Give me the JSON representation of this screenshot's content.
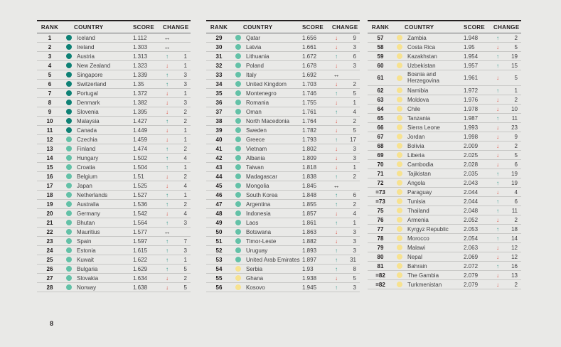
{
  "page": {
    "number": "8"
  },
  "colors": {
    "background": "#e9e9e7",
    "up_arrow": "#349a8f",
    "down_arrow": "#de4f43",
    "no_change": "#1a1a1a",
    "bands": {
      "very_high": "#0e8175",
      "high": "#63c1a7",
      "medium": "#f7e28f"
    }
  },
  "table_headers": {
    "rank": "RANK",
    "country": "COUNTRY",
    "score": "SCORE",
    "change": "CHANGE"
  },
  "tables": [
    {
      "rows": [
        {
          "rank": "1",
          "country": "Iceland",
          "score": "1.112",
          "dir": "same",
          "amt": "",
          "band": "very_high"
        },
        {
          "rank": "2",
          "country": "Ireland",
          "score": "1.303",
          "dir": "same",
          "amt": "",
          "band": "very_high"
        },
        {
          "rank": "3",
          "country": "Austria",
          "score": "1.313",
          "dir": "up",
          "amt": "1",
          "band": "very_high"
        },
        {
          "rank": "4",
          "country": "New Zealand",
          "score": "1.323",
          "dir": "down",
          "amt": "1",
          "band": "very_high"
        },
        {
          "rank": "5",
          "country": "Singapore",
          "score": "1.339",
          "dir": "up",
          "amt": "3",
          "band": "very_high"
        },
        {
          "rank": "6",
          "country": "Switzerland",
          "score": "1.35",
          "dir": "up",
          "amt": "3",
          "band": "very_high"
        },
        {
          "rank": "7",
          "country": "Portugal",
          "score": "1.372",
          "dir": "down",
          "amt": "1",
          "band": "very_high"
        },
        {
          "rank": "8",
          "country": "Denmark",
          "score": "1.382",
          "dir": "down",
          "amt": "3",
          "band": "very_high"
        },
        {
          "rank": "9",
          "country": "Slovenia",
          "score": "1.395",
          "dir": "down",
          "amt": "2",
          "band": "very_high"
        },
        {
          "rank": "10",
          "country": "Malaysia",
          "score": "1.427",
          "dir": "up",
          "amt": "2",
          "band": "very_high"
        },
        {
          "rank": "11",
          "country": "Canada",
          "score": "1.449",
          "dir": "down",
          "amt": "1",
          "band": "very_high"
        },
        {
          "rank": "12",
          "country": "Czechia",
          "score": "1.459",
          "dir": "down",
          "amt": "1",
          "band": "high"
        },
        {
          "rank": "13",
          "country": "Finland",
          "score": "1.474",
          "dir": "up",
          "amt": "2",
          "band": "high"
        },
        {
          "rank": "14",
          "country": "Hungary",
          "score": "1.502",
          "dir": "up",
          "amt": "4",
          "band": "high"
        },
        {
          "rank": "15",
          "country": "Croatia",
          "score": "1.504",
          "dir": "up",
          "amt": "1",
          "band": "high"
        },
        {
          "rank": "16",
          "country": "Belgium",
          "score": "1.51",
          "dir": "down",
          "amt": "2",
          "band": "high"
        },
        {
          "rank": "17",
          "country": "Japan",
          "score": "1.525",
          "dir": "down",
          "amt": "4",
          "band": "high"
        },
        {
          "rank": "18",
          "country": "Netherlands",
          "score": "1.527",
          "dir": "up",
          "amt": "1",
          "band": "high"
        },
        {
          "rank": "19",
          "country": "Australia",
          "score": "1.536",
          "dir": "up",
          "amt": "2",
          "band": "high"
        },
        {
          "rank": "20",
          "country": "Germany",
          "score": "1.542",
          "dir": "down",
          "amt": "4",
          "band": "high"
        },
        {
          "rank": "21",
          "country": "Bhutan",
          "score": "1.564",
          "dir": "up",
          "amt": "3",
          "band": "high"
        },
        {
          "rank": "22",
          "country": "Mauritius",
          "score": "1.577",
          "dir": "same",
          "amt": "",
          "band": "high"
        },
        {
          "rank": "23",
          "country": "Spain",
          "score": "1.597",
          "dir": "up",
          "amt": "7",
          "band": "high"
        },
        {
          "rank": "24",
          "country": "Estonia",
          "score": "1.615",
          "dir": "up",
          "amt": "3",
          "band": "high"
        },
        {
          "rank": "25",
          "country": "Kuwait",
          "score": "1.622",
          "dir": "up",
          "amt": "1",
          "band": "high"
        },
        {
          "rank": "26",
          "country": "Bulgaria",
          "score": "1.629",
          "dir": "up",
          "amt": "5",
          "band": "high"
        },
        {
          "rank": "27",
          "country": "Slovakia",
          "score": "1.634",
          "dir": "down",
          "amt": "2",
          "band": "high"
        },
        {
          "rank": "28",
          "country": "Norway",
          "score": "1.638",
          "dir": "down",
          "amt": "5",
          "band": "high"
        }
      ]
    },
    {
      "rows": [
        {
          "rank": "29",
          "country": "Qatar",
          "score": "1.656",
          "dir": "down",
          "amt": "9",
          "band": "high"
        },
        {
          "rank": "30",
          "country": "Latvia",
          "score": "1.661",
          "dir": "down",
          "amt": "3",
          "band": "high"
        },
        {
          "rank": "31",
          "country": "Lithuania",
          "score": "1.672",
          "dir": "up",
          "amt": "6",
          "band": "high"
        },
        {
          "rank": "32",
          "country": "Poland",
          "score": "1.678",
          "dir": "down",
          "amt": "3",
          "band": "high"
        },
        {
          "rank": "33",
          "country": "Italy",
          "score": "1.692",
          "dir": "same",
          "amt": "",
          "band": "high"
        },
        {
          "rank": "34",
          "country": "United Kingdom",
          "score": "1.703",
          "dir": "down",
          "amt": "2",
          "band": "high"
        },
        {
          "rank": "35",
          "country": "Montenegro",
          "score": "1.746",
          "dir": "up",
          "amt": "5",
          "band": "high"
        },
        {
          "rank": "36",
          "country": "Romania",
          "score": "1.755",
          "dir": "down",
          "amt": "1",
          "band": "high"
        },
        {
          "rank": "37",
          "country": "Oman",
          "score": "1.761",
          "dir": "up",
          "amt": "4",
          "band": "high"
        },
        {
          "rank": "38",
          "country": "North Macedonia",
          "score": "1.764",
          "dir": "down",
          "amt": "2",
          "band": "high"
        },
        {
          "rank": "39",
          "country": "Sweden",
          "score": "1.782",
          "dir": "down",
          "amt": "5",
          "band": "high"
        },
        {
          "rank": "40",
          "country": "Greece",
          "score": "1.793",
          "dir": "up",
          "amt": "17",
          "band": "high"
        },
        {
          "rank": "41",
          "country": "Vietnam",
          "score": "1.802",
          "dir": "down",
          "amt": "3",
          "band": "high"
        },
        {
          "rank": "42",
          "country": "Albania",
          "score": "1.809",
          "dir": "down",
          "amt": "3",
          "band": "high"
        },
        {
          "rank": "43",
          "country": "Taiwan",
          "score": "1.818",
          "dir": "down",
          "amt": "1",
          "band": "high"
        },
        {
          "rank": "44",
          "country": "Madagascar",
          "score": "1.838",
          "dir": "up",
          "amt": "2",
          "band": "high"
        },
        {
          "rank": "45",
          "country": "Mongolia",
          "score": "1.845",
          "dir": "same",
          "amt": "",
          "band": "high"
        },
        {
          "rank": "46",
          "country": "South Korea",
          "score": "1.848",
          "dir": "up",
          "amt": "6",
          "band": "high"
        },
        {
          "rank": "47",
          "country": "Argentina",
          "score": "1.855",
          "dir": "up",
          "amt": "2",
          "band": "high"
        },
        {
          "rank": "48",
          "country": "Indonesia",
          "score": "1.857",
          "dir": "down",
          "amt": "4",
          "band": "high"
        },
        {
          "rank": "49",
          "country": "Laos",
          "score": "1.861",
          "dir": "up",
          "amt": "1",
          "band": "high"
        },
        {
          "rank": "50",
          "country": "Botswana",
          "score": "1.863",
          "dir": "down",
          "amt": "3",
          "band": "high"
        },
        {
          "rank": "51",
          "country": "Timor-Leste",
          "score": "1.882",
          "dir": "down",
          "amt": "3",
          "band": "high"
        },
        {
          "rank": "52",
          "country": "Uruguay",
          "score": "1.893",
          "dir": "up",
          "amt": "3",
          "band": "high"
        },
        {
          "rank": "53",
          "country": "United Arab Emirates",
          "score": "1.897",
          "dir": "up",
          "amt": "31",
          "band": "high"
        },
        {
          "rank": "54",
          "country": "Serbia",
          "score": "1.93",
          "dir": "up",
          "amt": "8",
          "band": "medium"
        },
        {
          "rank": "55",
          "country": "Ghana",
          "score": "1.938",
          "dir": "down",
          "amt": "5",
          "band": "medium"
        },
        {
          "rank": "56",
          "country": "Kosovo",
          "score": "1.945",
          "dir": "up",
          "amt": "3",
          "band": "medium"
        }
      ]
    },
    {
      "rows": [
        {
          "rank": "57",
          "country": "Zambia",
          "score": "1.948",
          "dir": "up",
          "amt": "2",
          "band": "medium"
        },
        {
          "rank": "58",
          "country": "Costa Rica",
          "score": "1.95",
          "dir": "down",
          "amt": "5",
          "band": "medium"
        },
        {
          "rank": "59",
          "country": "Kazakhstan",
          "score": "1.954",
          "dir": "up",
          "amt": "19",
          "band": "medium"
        },
        {
          "rank": "60",
          "country": "Uzbekistan",
          "score": "1.957",
          "dir": "up",
          "amt": "15",
          "band": "medium"
        },
        {
          "rank": "61",
          "country": "Bosnia and Herzegovina",
          "score": "1.961",
          "dir": "down",
          "amt": "5",
          "band": "medium",
          "two_line": true
        },
        {
          "rank": "62",
          "country": "Namibia",
          "score": "1.972",
          "dir": "up",
          "amt": "1",
          "band": "medium"
        },
        {
          "rank": "63",
          "country": "Moldova",
          "score": "1.976",
          "dir": "down",
          "amt": "2",
          "band": "medium"
        },
        {
          "rank": "64",
          "country": "Chile",
          "score": "1.978",
          "dir": "down",
          "amt": "10",
          "band": "medium"
        },
        {
          "rank": "65",
          "country": "Tanzania",
          "score": "1.987",
          "dir": "up",
          "amt": "11",
          "band": "medium"
        },
        {
          "rank": "66",
          "country": "Sierra Leone",
          "score": "1.993",
          "dir": "down",
          "amt": "23",
          "band": "medium"
        },
        {
          "rank": "67",
          "country": "Jordan",
          "score": "1.998",
          "dir": "down",
          "amt": "9",
          "band": "medium"
        },
        {
          "rank": "68",
          "country": "Bolivia",
          "score": "2.009",
          "dir": "down",
          "amt": "2",
          "band": "medium"
        },
        {
          "rank": "69",
          "country": "Liberia",
          "score": "2.025",
          "dir": "down",
          "amt": "5",
          "band": "medium"
        },
        {
          "rank": "70",
          "country": "Cambodia",
          "score": "2.028",
          "dir": "down",
          "amt": "6",
          "band": "medium"
        },
        {
          "rank": "71",
          "country": "Tajikistan",
          "score": "2.035",
          "dir": "up",
          "amt": "19",
          "band": "medium"
        },
        {
          "rank": "72",
          "country": "Angola",
          "score": "2.043",
          "dir": "up",
          "amt": "19",
          "band": "medium"
        },
        {
          "rank": "=73",
          "country": "Paraguay",
          "score": "2.044",
          "dir": "down",
          "amt": "4",
          "band": "medium"
        },
        {
          "rank": "=73",
          "country": "Tunisia",
          "score": "2.044",
          "dir": "up",
          "amt": "6",
          "band": "medium"
        },
        {
          "rank": "75",
          "country": "Thailand",
          "score": "2.048",
          "dir": "up",
          "amt": "11",
          "band": "medium"
        },
        {
          "rank": "76",
          "country": "Armenia",
          "score": "2.052",
          "dir": "down",
          "amt": "2",
          "band": "medium"
        },
        {
          "rank": "77",
          "country": "Kyrgyz Republic",
          "score": "2.053",
          "dir": "up",
          "amt": "18",
          "band": "medium"
        },
        {
          "rank": "78",
          "country": "Morocco",
          "score": "2.054",
          "dir": "up",
          "amt": "14",
          "band": "medium"
        },
        {
          "rank": "79",
          "country": "Malawi",
          "score": "2.063",
          "dir": "down",
          "amt": "12",
          "band": "medium"
        },
        {
          "rank": "80",
          "country": "Nepal",
          "score": "2.069",
          "dir": "down",
          "amt": "12",
          "band": "medium"
        },
        {
          "rank": "81",
          "country": "Bahrain",
          "score": "2.072",
          "dir": "up",
          "amt": "16",
          "band": "medium"
        },
        {
          "rank": "=82",
          "country": "The Gambia",
          "score": "2.079",
          "dir": "down",
          "amt": "13",
          "band": "medium"
        },
        {
          "rank": "=82",
          "country": "Turkmenistan",
          "score": "2.079",
          "dir": "down",
          "amt": "2",
          "band": "medium"
        }
      ]
    }
  ]
}
